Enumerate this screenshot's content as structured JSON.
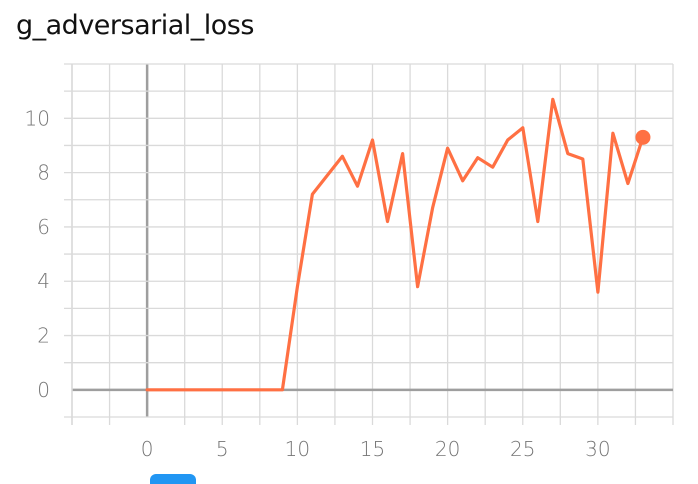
{
  "title": "g_adversarial_loss",
  "colors": {
    "series": "#ff7043",
    "grid": "#dadada",
    "zero_axis": "#9e9e9e",
    "toggle": "#2196f3"
  },
  "chart_data": {
    "type": "line",
    "title": "g_adversarial_loss",
    "xlabel": "",
    "ylabel": "",
    "xlim": [
      -5,
      35
    ],
    "ylim": [
      -1,
      12
    ],
    "x_ticks": [
      0,
      5,
      10,
      15,
      20,
      25,
      30
    ],
    "y_ticks": [
      0,
      2,
      4,
      6,
      8,
      10
    ],
    "grid": true,
    "series": [
      {
        "x": [
          0,
          1,
          2,
          3,
          4,
          5,
          6,
          7,
          8,
          9,
          10,
          11,
          12,
          13,
          14,
          15,
          16,
          17,
          18,
          19,
          20,
          21,
          22,
          23,
          24,
          25,
          26,
          27,
          28,
          29,
          30,
          31,
          32,
          33
        ],
        "y": [
          0,
          0,
          0,
          0,
          0,
          0,
          0,
          0,
          0,
          0,
          3.8,
          7.2,
          7.9,
          8.6,
          7.5,
          9.2,
          6.2,
          8.7,
          3.8,
          6.7,
          8.9,
          7.7,
          8.55,
          8.2,
          9.2,
          9.65,
          6.2,
          10.7,
          8.7,
          8.5,
          3.6,
          9.45,
          7.6,
          9.3
        ]
      }
    ]
  }
}
